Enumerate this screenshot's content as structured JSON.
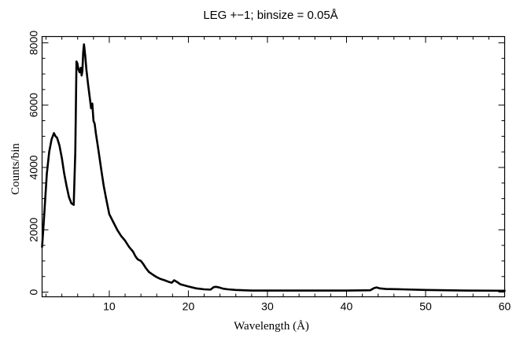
{
  "chart_data": {
    "type": "line",
    "title": "LEG +−1; binsize = 0.05Å",
    "xlabel": "Wavelength (Å)",
    "ylabel": "Counts/bin",
    "xlim": [
      1.5,
      60
    ],
    "ylim": [
      -150,
      8200
    ],
    "x_ticks": [
      10,
      20,
      30,
      40,
      50,
      60
    ],
    "x_tick_labels": [
      "10",
      "20",
      "30",
      "40",
      "50",
      "60"
    ],
    "x_minor_step": 2,
    "y_ticks": [
      0,
      2000,
      4000,
      6000,
      8000
    ],
    "y_tick_labels": [
      "0",
      "2000",
      "4000",
      "6000",
      "8000"
    ],
    "y_minor_step": 500,
    "grid": false,
    "legend": "none",
    "series": [
      {
        "color": "#000000",
        "x": [
          1.5,
          1.7,
          1.9,
          2.1,
          2.4,
          2.7,
          3.0,
          3.2,
          3.4,
          3.7,
          4.0,
          4.3,
          4.6,
          4.9,
          5.2,
          5.5,
          5.7,
          5.85,
          5.95,
          6.1,
          6.25,
          6.4,
          6.5,
          6.6,
          6.7,
          6.8,
          6.95,
          7.1,
          7.3,
          7.5,
          7.7,
          7.85,
          8.0,
          8.15,
          8.3,
          8.6,
          9.0,
          9.3,
          9.6,
          10.0,
          10.5,
          11.0,
          11.5,
          12.0,
          12.5,
          13.0,
          13.3,
          13.6,
          14.0,
          14.3,
          14.6,
          15.0,
          15.5,
          16.0,
          16.5,
          17.0,
          17.5,
          17.9,
          18.2,
          18.6,
          19.0,
          20.0,
          21.0,
          22.0,
          22.8,
          23.2,
          23.5,
          23.9,
          24.4,
          25.0,
          26.0,
          27.0,
          28.0,
          30.0,
          35.0,
          40.0,
          43.0,
          43.5,
          43.8,
          44.2,
          45.0,
          47.0,
          50.0,
          55.0,
          60.0
        ],
        "values": [
          1450,
          2200,
          3000,
          3800,
          4500,
          4900,
          5100,
          5000,
          4950,
          4700,
          4300,
          3800,
          3400,
          3050,
          2850,
          2800,
          4500,
          7400,
          7350,
          7150,
          7050,
          7200,
          6950,
          7100,
          7700,
          7950,
          7600,
          7150,
          6700,
          6300,
          5900,
          6050,
          5500,
          5400,
          5100,
          4600,
          3900,
          3400,
          3000,
          2500,
          2250,
          2000,
          1800,
          1650,
          1450,
          1300,
          1150,
          1050,
          1000,
          900,
          780,
          650,
          560,
          480,
          420,
          380,
          330,
          300,
          380,
          320,
          250,
          180,
          120,
          90,
          80,
          160,
          170,
          150,
          110,
          90,
          70,
          60,
          50,
          50,
          50,
          50,
          60,
          130,
          150,
          120,
          100,
          90,
          70,
          50,
          45
        ]
      }
    ]
  }
}
